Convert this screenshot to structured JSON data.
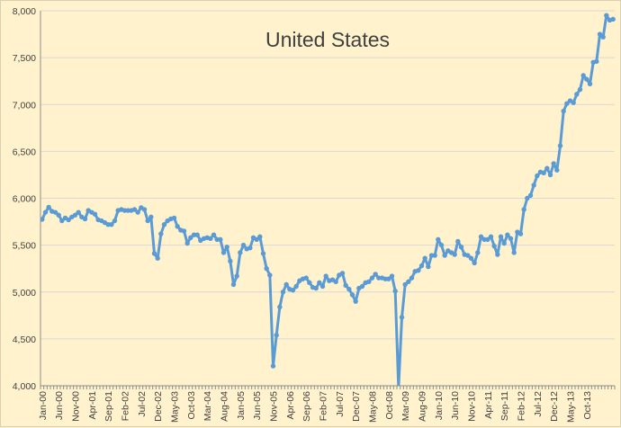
{
  "chart_data": {
    "type": "line",
    "title": "United States",
    "xlabel": "",
    "ylabel": "",
    "ylim": [
      4000,
      8000
    ],
    "yticks": [
      4000,
      4500,
      5000,
      5500,
      6000,
      6500,
      7000,
      7500,
      8000
    ],
    "ytick_labels": [
      "4,000",
      "4,500",
      "5,000",
      "5,500",
      "6,000",
      "6,500",
      "7,000",
      "7,500",
      "8,000"
    ],
    "xtick_labels": [
      "Jan-00",
      "Jun-00",
      "Nov-00",
      "Apr-01",
      "Sep-01",
      "Feb-02",
      "Jul-02",
      "Dec-02",
      "May-03",
      "Oct-03",
      "Mar-04",
      "Aug-04",
      "Jan-05",
      "Jun-05",
      "Nov-05",
      "Apr-06",
      "Sep-06",
      "Feb-07",
      "Jul-07",
      "Dec-07",
      "May-08",
      "Oct-08",
      "Mar-09",
      "Aug-09",
      "Jan-10",
      "Jun-10",
      "Nov-10",
      "Apr-11",
      "Sep-11",
      "Feb-12",
      "Jul-12",
      "Dec-12",
      "May-13",
      "Oct-13"
    ],
    "grid": "horizontal",
    "legend": "none",
    "series_color": "#5B9BD5",
    "start": "Jan-00",
    "series": [
      {
        "values": [
          5775,
          5850,
          5905,
          5860,
          5850,
          5820,
          5760,
          5790,
          5770,
          5800,
          5820,
          5850,
          5800,
          5780,
          5870,
          5850,
          5830,
          5770,
          5760,
          5740,
          5720,
          5720,
          5760,
          5870,
          5880,
          5870,
          5870,
          5870,
          5880,
          5850,
          5900,
          5880,
          5760,
          5800,
          5410,
          5360,
          5620,
          5720,
          5760,
          5780,
          5790,
          5700,
          5660,
          5650,
          5520,
          5580,
          5610,
          5610,
          5550,
          5570,
          5580,
          5570,
          5610,
          5560,
          5560,
          5420,
          5480,
          5330,
          5080,
          5170,
          5420,
          5500,
          5460,
          5470,
          5580,
          5560,
          5590,
          5410,
          5250,
          5180,
          4210,
          4540,
          4840,
          5000,
          5080,
          5030,
          5020,
          5060,
          5120,
          5140,
          5150,
          5100,
          5050,
          5040,
          5100,
          5060,
          5170,
          5120,
          5130,
          5110,
          5180,
          5200,
          5070,
          5030,
          4970,
          4900,
          5040,
          5060,
          5100,
          5110,
          5150,
          5190,
          5150,
          5150,
          5140,
          5140,
          5170,
          5010,
          3980,
          4730,
          5080,
          5110,
          5150,
          5220,
          5230,
          5280,
          5360,
          5270,
          5390,
          5390,
          5560,
          5500,
          5390,
          5440,
          5420,
          5400,
          5540,
          5480,
          5400,
          5390,
          5360,
          5310,
          5420,
          5590,
          5560,
          5560,
          5590,
          5490,
          5400,
          5590,
          5520,
          5610,
          5570,
          5420,
          5640,
          5620,
          5880,
          6000,
          6030,
          6140,
          6240,
          6280,
          6270,
          6320,
          6250,
          6370,
          6300,
          6560,
          6930,
          7010,
          7040,
          7020,
          7110,
          7160,
          7310,
          7270,
          7220,
          7450,
          7460,
          7750,
          7720,
          7950,
          7900,
          7910
        ]
      }
    ]
  }
}
